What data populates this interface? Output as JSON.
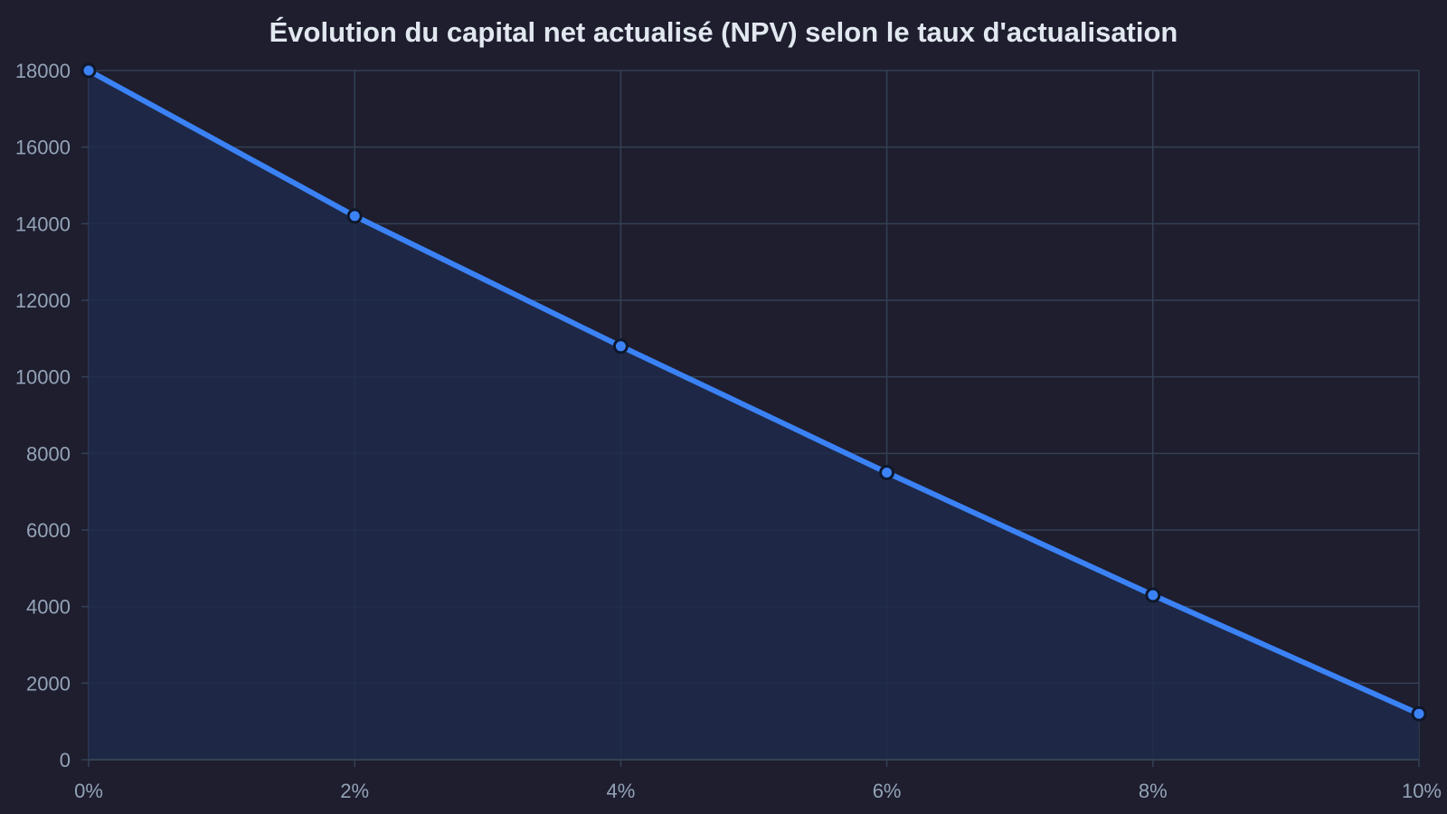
{
  "chart_data": {
    "type": "area",
    "title": "Évolution du capital net actualisé (NPV) selon le taux d'actualisation",
    "categories": [
      "0%",
      "2%",
      "4%",
      "6%",
      "8%",
      "10%"
    ],
    "series": [
      {
        "values": [
          18000,
          14200,
          10800,
          7500,
          4300,
          1200
        ]
      }
    ],
    "xlabel": "",
    "ylabel": "",
    "ylim": [
      0,
      18000
    ],
    "yticks": [
      0,
      2000,
      4000,
      6000,
      8000,
      10000,
      12000,
      14000,
      16000,
      18000
    ],
    "grid": true,
    "legend": "none",
    "colors": {
      "background": "#1e1e2e",
      "line": "#3b82f6",
      "fill": "#1f2a4a",
      "grid": "#334155",
      "point_stroke": "#0f172a",
      "tick_text": "#94a3b8",
      "title": "#e2e8f0"
    }
  }
}
